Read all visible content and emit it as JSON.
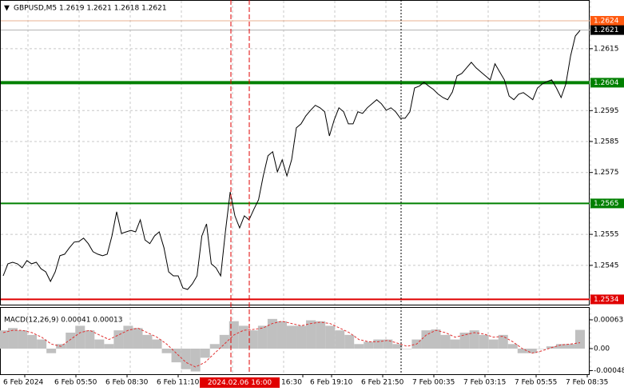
{
  "chart_data": [
    {
      "type": "line",
      "title": "GBPUSD,M5  1.2619 1.2621 1.2618 1.2621",
      "color": "#000000",
      "values": [
        1.25416,
        1.25455,
        1.2546,
        1.25455,
        1.25442,
        1.25465,
        1.25455,
        1.2546,
        1.25439,
        1.25429,
        1.25398,
        1.25429,
        1.25481,
        1.25486,
        1.25507,
        1.25525,
        1.25527,
        1.25538,
        1.2552,
        1.25494,
        1.25486,
        1.25481,
        1.25486,
        1.25545,
        1.25623,
        1.25553,
        1.25558,
        1.25563,
        1.25558,
        1.25597,
        1.25532,
        1.2552,
        1.25545,
        1.25558,
        1.25507,
        1.25429,
        1.25416,
        1.25416,
        1.25377,
        1.25372,
        1.2539,
        1.25416,
        1.25545,
        1.25584,
        1.25455,
        1.25442,
        1.25416,
        1.25558,
        1.25687,
        1.2561,
        1.25571,
        1.2561,
        1.25597,
        1.25631,
        1.25662,
        1.25739,
        1.25804,
        1.25817,
        1.25752,
        1.25791,
        1.25739,
        1.25791,
        1.25894,
        1.25907,
        1.25933,
        1.25951,
        1.25967,
        1.25959,
        1.25946,
        1.25868,
        1.2592,
        1.25959,
        1.25946,
        1.25907,
        1.25907,
        1.25946,
        1.25941,
        1.25959,
        1.25972,
        1.25985,
        1.25972,
        1.25951,
        1.25959,
        1.25946,
        1.25925,
        1.25925,
        1.25946,
        1.26023,
        1.26029,
        1.26041,
        1.26029,
        1.26018,
        1.26003,
        1.25992,
        1.25985,
        1.2601,
        1.26062,
        1.2607,
        1.26088,
        1.26106,
        1.26088,
        1.26075,
        1.26062,
        1.26049,
        1.26101,
        1.26075,
        1.26049,
        1.25997,
        1.25985,
        1.26003,
        1.26008,
        1.25997,
        1.25985,
        1.26023,
        1.26036,
        1.26044,
        1.26049,
        1.26023,
        1.25992,
        1.26036,
        1.26127,
        1.26191,
        1.26209
      ],
      "ylim": [
        1.25323,
        1.26302
      ],
      "yticks": [
        1.2615,
        1.2595,
        1.2585,
        1.2575,
        1.2555,
        1.2545
      ],
      "grid": true,
      "levels": [
        {
          "value": 1.2624,
          "color": "#ff5a10"
        },
        {
          "value": 1.2621,
          "color": "#000000"
        },
        {
          "value": 1.2604,
          "color": "#008000"
        },
        {
          "value": 1.2565,
          "color": "#008000"
        },
        {
          "value": 1.2534,
          "color": "#e00000"
        }
      ],
      "x_labels": [
        "6 Feb 2024",
        "6 Feb 05:50",
        "6 Feb 08:30",
        "6 Feb 11:10",
        "",
        "16:30",
        "6 Feb 19:10",
        "6 Feb 21:50",
        "7 Feb 00:35",
        "7 Feb 03:15",
        "7 Feb 05:55",
        "7 Feb 08:35"
      ],
      "crosshair_label": "2024.02.06 16:00"
    },
    {
      "type": "macd",
      "title": "MACD(12,26,9) 0.00041 0.00013",
      "series": [
        {
          "color": "#c0c0c0",
          "values": [
            0.0004,
            0.00045,
            0.0004,
            0.0003,
            0.0002,
            -0.0001,
            0.0001,
            0.00035,
            0.0005,
            0.0004,
            0.0002,
            0.0001,
            0.0004,
            0.0005,
            0.00045,
            0.0003,
            0.0002,
            -0.0001,
            -0.0003,
            -0.00045,
            -0.0005,
            -0.0002,
            0.0001,
            0.0003,
            0.0006,
            0.0005,
            0.0004,
            0.0005,
            0.00065,
            0.0006,
            0.0005,
            0.0005,
            0.00062,
            0.0006,
            0.0005,
            0.0004,
            0.0003,
            0.0001,
            0.00015,
            0.0002,
            0.0002,
            0.0001,
            0.0,
            0.0002,
            0.0004,
            0.00042,
            0.0003,
            0.0002,
            0.00035,
            0.0004,
            0.0003,
            0.0002,
            0.0003,
            0.0001,
            -0.0001,
            -0.0001,
            0.0,
            5e-05,
            0.0001,
            0.0001,
            0.00041
          ]
        },
        {
          "color": "#e03030",
          "values": [
            0.00035,
            0.0004,
            0.0004,
            0.00035,
            0.00025,
            0.0001,
            5e-05,
            0.0002,
            0.00035,
            0.0004,
            0.0003,
            0.0002,
            0.0003,
            0.0004,
            0.00045,
            0.00035,
            0.00025,
            0.0001,
            -0.0001,
            -0.0003,
            -0.0004,
            -0.0003,
            -0.0001,
            0.0001,
            0.0003,
            0.0004,
            0.00042,
            0.00045,
            0.00055,
            0.0006,
            0.00055,
            0.0005,
            0.00055,
            0.00058,
            0.00055,
            0.00045,
            0.00035,
            0.0002,
            0.00015,
            0.00015,
            0.00018,
            0.00012,
            5e-05,
            0.0001,
            0.0003,
            0.0004,
            0.00035,
            0.00025,
            0.0003,
            0.00035,
            0.00032,
            0.00025,
            0.00027,
            0.00015,
            0.0,
            -0.0001,
            -5e-05,
            2e-05,
            8e-05,
            0.0001,
            0.00013
          ]
        }
      ],
      "ylim": [
        -0.00056,
        0.00091
      ],
      "yticks": [
        0.00063,
        {
          "value": 0,
          "label": "0.00"
        },
        -0.00048
      ]
    }
  ]
}
